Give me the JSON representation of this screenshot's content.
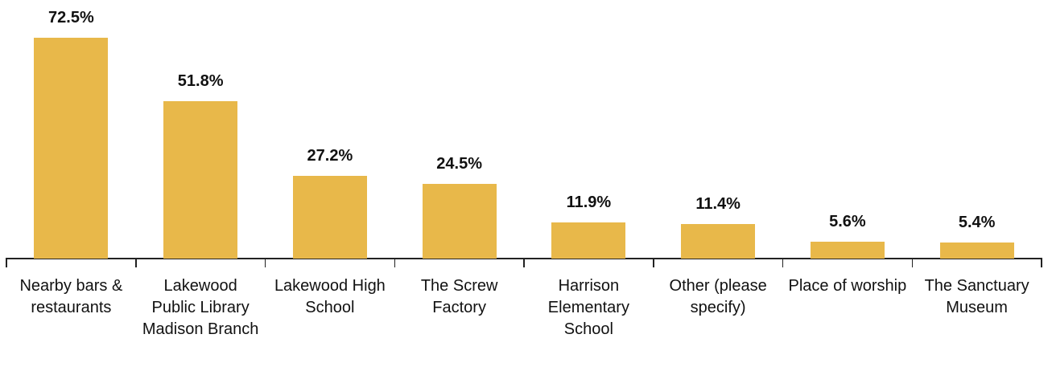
{
  "chart_data": {
    "type": "bar",
    "categories": [
      "Nearby bars & restaurants",
      "Lakewood Public Library Madison Branch",
      "Lakewood High School",
      "The Screw Factory",
      "Harrison Elementary School",
      "Other (please specify)",
      "Place of worship",
      "The Sanctuary Museum"
    ],
    "values": [
      72.5,
      51.8,
      27.2,
      24.5,
      11.9,
      11.4,
      5.6,
      5.4
    ],
    "value_labels": [
      "72.5%",
      "51.8%",
      "27.2%",
      "24.5%",
      "11.9%",
      "11.4%",
      "5.6%",
      "5.4%"
    ],
    "color": "#E8B84A"
  }
}
